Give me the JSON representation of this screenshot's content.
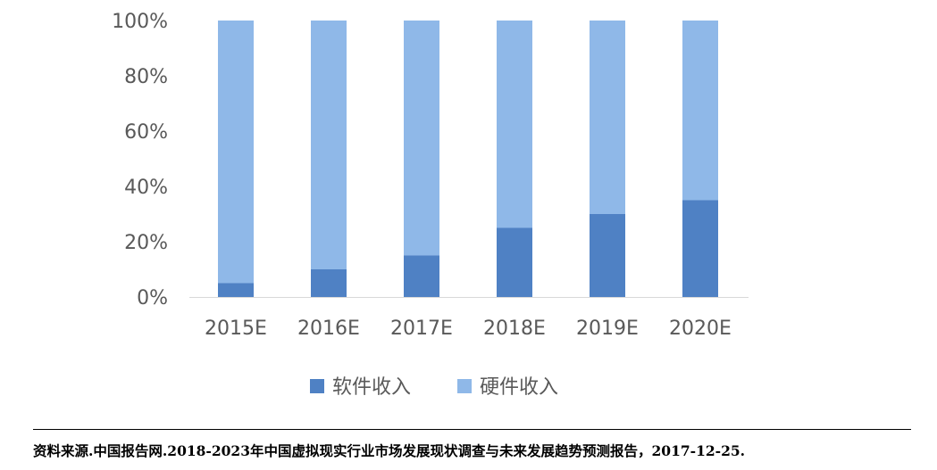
{
  "chart_data": {
    "type": "bar",
    "stacked": true,
    "categories": [
      "2015E",
      "2016E",
      "2017E",
      "2018E",
      "2019E",
      "2020E"
    ],
    "series": [
      {
        "name": "软件收入",
        "color": "#4f81c4",
        "values": [
          5,
          10,
          15,
          25,
          30,
          35
        ]
      },
      {
        "name": "硬件收入",
        "color": "#8fb8e8",
        "values": [
          95,
          90,
          85,
          75,
          70,
          65
        ]
      }
    ],
    "ylim": [
      0,
      100
    ],
    "yticks": [
      "0%",
      "20%",
      "40%",
      "60%",
      "80%",
      "100%"
    ],
    "ytick_values": [
      0,
      20,
      40,
      60,
      80,
      100
    ],
    "grid": false,
    "legend_position": "bottom"
  },
  "source": "资料来源.中国报告网.2018-2023年中国虚拟现实行业市场发展现状调查与未来发展趋势预测报告，2017-12-25."
}
